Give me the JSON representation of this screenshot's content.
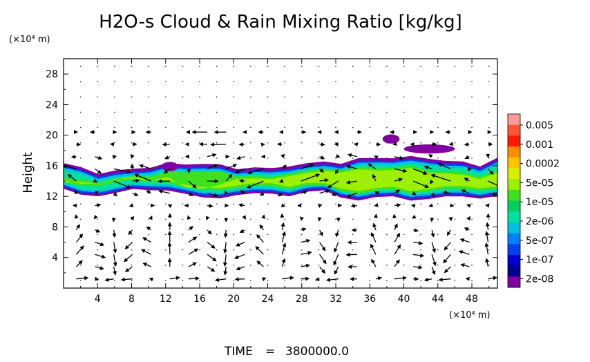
{
  "chart_data": {
    "type": "heatmap",
    "title": "H2O-s Cloud & Rain Mixing Ratio [kg/kg]",
    "ylabel": "Height",
    "x_unit": "(×10⁴ m)",
    "y_unit": "(×10⁴ m)",
    "xlim": [
      0,
      51
    ],
    "ylim": [
      0,
      30
    ],
    "x_ticks": [
      "4",
      "8",
      "12",
      "16",
      "20",
      "24",
      "28",
      "32",
      "36",
      "40",
      "44",
      "48"
    ],
    "y_ticks": [
      "4",
      "8",
      "12",
      "16",
      "20",
      "24",
      "28"
    ],
    "colorbar": {
      "labels": [
        "0.005",
        "0.001",
        "0.0002",
        "5e-05",
        "1e-05",
        "2e-06",
        "5e-07",
        "1e-07",
        "2e-08"
      ],
      "colors": [
        "#ff9999",
        "#ff5533",
        "#ff1a00",
        "#ff8c00",
        "#ffc400",
        "#d8f000",
        "#9cf000",
        "#40e020",
        "#00d060",
        "#00e0a0",
        "#00c0e0",
        "#0080ff",
        "#0040f0",
        "#0000d0",
        "#000090",
        "#8000a0"
      ]
    },
    "cloud_layer": {
      "z_bottom": [
        13,
        12.5,
        12.5,
        12.6,
        13,
        13.2,
        13.2,
        12.4,
        12,
        12.2,
        12.5,
        12.4,
        12.6,
        12.5,
        12.8,
        12.8,
        12.2,
        11.9,
        12,
        12.1,
        11.9,
        12,
        12,
        12.2,
        12.2,
        12.3
      ],
      "z_top": [
        16,
        15.3,
        14.8,
        14.9,
        15.2,
        15.6,
        15.8,
        15.9,
        16,
        15.6,
        15.4,
        15.4,
        15.2,
        15.8,
        15.8,
        16.2,
        16.1,
        16.4,
        16.8,
        16.7,
        16.7,
        16.8,
        16.2,
        16.1,
        15.8,
        16.5
      ],
      "core_bottom": [
        13.6,
        13.4,
        13.6,
        13.8,
        14,
        14,
        14,
        13,
        12.8,
        13,
        13.2,
        13.2,
        13.4,
        13.2,
        13.4,
        13.2,
        12.8,
        12.6,
        12.6,
        12.8,
        12.6,
        12.8,
        12.8,
        13,
        13,
        13
      ],
      "core_top": [
        14.4,
        14,
        14,
        14.2,
        14.6,
        14.8,
        15,
        15.2,
        15.4,
        15,
        14.8,
        14.6,
        14.4,
        15.2,
        15.2,
        15.6,
        15.6,
        15.6,
        15.8,
        15.8,
        15.8,
        15.6,
        15.2,
        15,
        14.8,
        15.2
      ]
    },
    "upper_patches": [
      {
        "x": 38.5,
        "z": 19.5,
        "r": 1
      },
      {
        "x": 43,
        "z": 18.2,
        "r": 3
      },
      {
        "x": 12.5,
        "z": 15.9,
        "r": 1
      }
    ],
    "wind_vectors": "velocity field shown as arrows on a regular grid"
  },
  "footer": {
    "label": "TIME",
    "equals": "=",
    "value": "3800000.0"
  }
}
